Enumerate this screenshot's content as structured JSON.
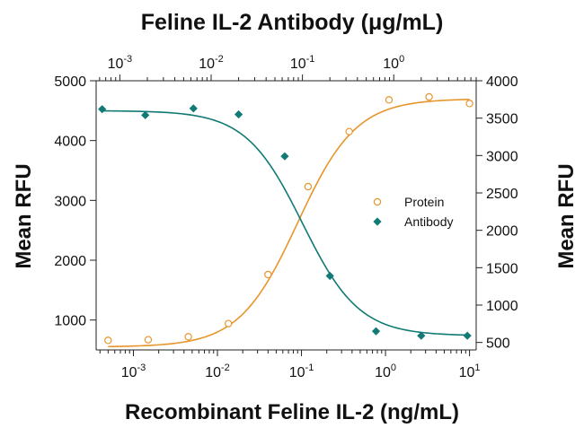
{
  "chart_data": {
    "type": "scatter",
    "title_top": "Feline IL-2 Antibody (μg/mL)",
    "xlabel": "Recombinant Feline IL-2 (ng/mL)",
    "ylabel_left": "Mean RFU",
    "ylabel_right": "Mean RFU",
    "x_scale": "log",
    "x_bottom_lim": [
      0.00036,
      12
    ],
    "x_top_lim": [
      0.00055,
      8
    ],
    "x_bottom_ticks": [
      {
        "value": 0.001,
        "base": "10",
        "exp": "-3"
      },
      {
        "value": 0.01,
        "base": "10",
        "exp": "-2"
      },
      {
        "value": 0.1,
        "base": "10",
        "exp": "-1"
      },
      {
        "value": 1,
        "base": "10",
        "exp": "0"
      },
      {
        "value": 10,
        "base": "10",
        "exp": "1"
      }
    ],
    "x_top_ticks": [
      {
        "value": 0.001,
        "base": "10",
        "exp": "-3"
      },
      {
        "value": 0.01,
        "base": "10",
        "exp": "-2"
      },
      {
        "value": 0.1,
        "base": "10",
        "exp": "-1"
      },
      {
        "value": 1,
        "base": "10",
        "exp": "0"
      }
    ],
    "y_left_lim": [
      500,
      5000
    ],
    "y_left_ticks": [
      "1000",
      "2000",
      "3000",
      "4000",
      "5000"
    ],
    "y_right_lim": [
      400,
      4000
    ],
    "y_right_ticks": [
      "500",
      "1000",
      "1500",
      "2000",
      "2500",
      "3000",
      "3500",
      "4000"
    ],
    "legend_position": "center-right",
    "series": [
      {
        "name": "Protein",
        "axis": "bottom-left",
        "marker": "open-circle",
        "color": "#e8952b",
        "x": [
          0.0005,
          0.0015,
          0.0045,
          0.0135,
          0.04,
          0.12,
          0.37,
          1.1,
          3.3,
          10
        ],
        "y": [
          660,
          670,
          720,
          940,
          1760,
          3230,
          4150,
          4680,
          4730,
          4620
        ],
        "fit": {
          "bottom": 550,
          "top": 4700,
          "ec50": 0.09,
          "hill": 1.25
        }
      },
      {
        "name": "Antibody",
        "axis": "top-right",
        "marker": "filled-diamond",
        "color": "#117a74",
        "x": [
          0.00064,
          0.0019,
          0.0064,
          0.02,
          0.064,
          0.2,
          0.64,
          2,
          6.4
        ],
        "y": [
          3620,
          3540,
          3630,
          3550,
          2990,
          1390,
          650,
          590,
          590
        ],
        "fit": {
          "bottom": 590,
          "top": 3600,
          "ec50": 0.1,
          "hill": -1.4
        }
      }
    ]
  }
}
